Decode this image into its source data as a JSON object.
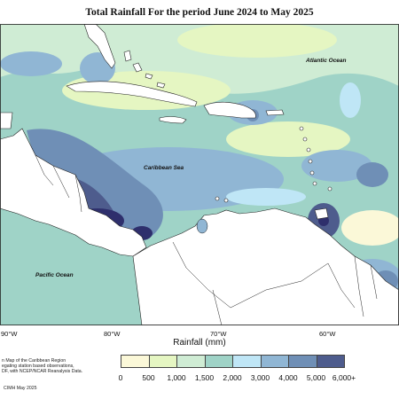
{
  "title": "Total Rainfall For the period June 2024 to May 2025",
  "ocean_labels": {
    "atlantic": "Atlantic Ocean",
    "caribbean": "Caribbean Sea",
    "pacific": "Pacific Ocean"
  },
  "longitude_labels": [
    "90°W",
    "80°W",
    "70°W",
    "60°W"
  ],
  "legend": {
    "title": "Rainfall (mm)",
    "tick_labels": [
      "0",
      "500",
      "1,000",
      "1,500",
      "2,000",
      "3,000",
      "4,000",
      "5,000",
      "6,000+"
    ],
    "colors": [
      "#fbf8d8",
      "#e5f6c2",
      "#cfecd4",
      "#9fd3c7",
      "#bfe6f6",
      "#90b6d4",
      "#6f8fb6",
      "#4e5c8d",
      "#2e2f6c"
    ]
  },
  "footer": {
    "note_line1": "n Map of the Caribbean Region",
    "note_line2": "egating station based observations,",
    "note_line3": "DF, with NCEP/NCAR Reanalysis Data.",
    "credit": "CIMH May 2025"
  }
}
